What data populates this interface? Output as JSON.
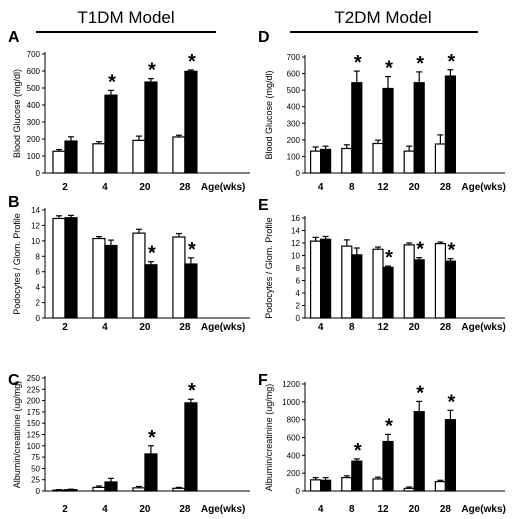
{
  "headers": {
    "left": "T1DM Model",
    "right": "T2DM Model"
  },
  "chart_data": [
    {
      "id": "A",
      "type": "bar",
      "letter": "A",
      "ylabel": "Blood Glucose (mg/dl)",
      "ylim": [
        0,
        700
      ],
      "yticks": [
        0,
        100,
        200,
        300,
        400,
        500,
        600,
        700
      ],
      "categories": [
        "2",
        "4",
        "20",
        "28"
      ],
      "x_unit": "Age(wks)",
      "series": [
        {
          "fill": "#ffffff",
          "values": [
            128,
            172,
            192,
            212
          ],
          "errors": [
            10,
            12,
            25,
            10
          ]
        },
        {
          "fill": "#000000",
          "values": [
            188,
            458,
            535,
            598
          ],
          "errors": [
            25,
            28,
            20,
            8
          ]
        }
      ],
      "significant": [
        "4",
        "20",
        "28"
      ]
    },
    {
      "id": "B",
      "type": "bar",
      "letter": "B",
      "ylabel": "Podocytes / Glom. Profile",
      "ylim": [
        0,
        14
      ],
      "yticks": [
        0,
        2,
        4,
        6,
        8,
        10,
        12,
        14
      ],
      "categories": [
        "2",
        "4",
        "20",
        "28"
      ],
      "x_unit": "Age(wks)",
      "series": [
        {
          "fill": "#ffffff",
          "values": [
            12.9,
            10.3,
            11.0,
            10.5
          ],
          "errors": [
            0.35,
            0.25,
            0.5,
            0.45
          ]
        },
        {
          "fill": "#000000",
          "values": [
            13.0,
            9.4,
            6.9,
            7.0
          ],
          "errors": [
            0.3,
            0.7,
            0.4,
            0.8
          ]
        }
      ],
      "significant": [
        "20",
        "28"
      ]
    },
    {
      "id": "C",
      "type": "bar",
      "letter": "C",
      "ylabel": "Albumin/creatinine (ug/mg)",
      "ylim": [
        0,
        250
      ],
      "yticks": [
        0,
        25,
        50,
        75,
        100,
        125,
        150,
        175,
        200,
        225,
        250
      ],
      "categories": [
        "2",
        "4",
        "20",
        "28"
      ],
      "x_unit": "Age(wks)",
      "series": [
        {
          "fill": "#ffffff",
          "values": [
            2,
            8,
            7,
            6
          ],
          "errors": [
            1,
            3,
            3,
            2
          ]
        },
        {
          "fill": "#000000",
          "values": [
            3,
            20,
            82,
            195
          ],
          "errors": [
            1,
            8,
            18,
            8
          ]
        }
      ],
      "significant": [
        "20",
        "28"
      ]
    },
    {
      "id": "D",
      "type": "bar",
      "letter": "D",
      "ylabel": "Blood Glucose (mg/dl)",
      "ylim": [
        0,
        700
      ],
      "yticks": [
        0,
        100,
        200,
        300,
        400,
        500,
        600,
        700
      ],
      "categories": [
        "4",
        "8",
        "12",
        "20",
        "28"
      ],
      "x_unit": "Age(wks)",
      "series": [
        {
          "fill": "#ffffff",
          "values": [
            132,
            148,
            178,
            132,
            175
          ],
          "errors": [
            25,
            22,
            20,
            30,
            55
          ]
        },
        {
          "fill": "#000000",
          "values": [
            142,
            545,
            510,
            545,
            585
          ],
          "errors": [
            20,
            70,
            72,
            65,
            38
          ]
        }
      ],
      "significant": [
        "8",
        "12",
        "20",
        "28"
      ]
    },
    {
      "id": "E",
      "type": "bar",
      "letter": "E",
      "ylabel": "Podocytes / Glom. Profile",
      "ylim": [
        0,
        16
      ],
      "yticks": [
        0,
        2,
        4,
        6,
        8,
        10,
        12,
        14,
        16
      ],
      "categories": [
        "4",
        "8",
        "12",
        "20",
        "28"
      ],
      "x_unit": "Age(wks)",
      "series": [
        {
          "fill": "#ffffff",
          "values": [
            12.3,
            11.5,
            11.0,
            11.7,
            11.9
          ],
          "errors": [
            0.6,
            1.0,
            0.35,
            0.3,
            0.25
          ]
        },
        {
          "fill": "#000000",
          "values": [
            12.6,
            10.1,
            8.1,
            9.3,
            9.1
          ],
          "errors": [
            0.45,
            1.1,
            0.2,
            0.35,
            0.4
          ]
        }
      ],
      "significant": [
        "12",
        "20",
        "28"
      ]
    },
    {
      "id": "F",
      "type": "bar",
      "letter": "F",
      "ylabel": "Albumin/creatinine (ug/mg)",
      "ylim": [
        0,
        1200
      ],
      "yticks": [
        0,
        200,
        400,
        600,
        800,
        1000,
        1200
      ],
      "categories": [
        "4",
        "8",
        "12",
        "20",
        "28"
      ],
      "x_unit": "Age(wks)",
      "series": [
        {
          "fill": "#ffffff",
          "values": [
            125,
            150,
            135,
            30,
            105
          ],
          "errors": [
            25,
            20,
            20,
            15,
            15
          ]
        },
        {
          "fill": "#000000",
          "values": [
            120,
            335,
            555,
            890,
            800
          ],
          "errors": [
            30,
            25,
            80,
            115,
            105
          ]
        }
      ],
      "significant": [
        "8",
        "12",
        "20",
        "28"
      ]
    }
  ]
}
